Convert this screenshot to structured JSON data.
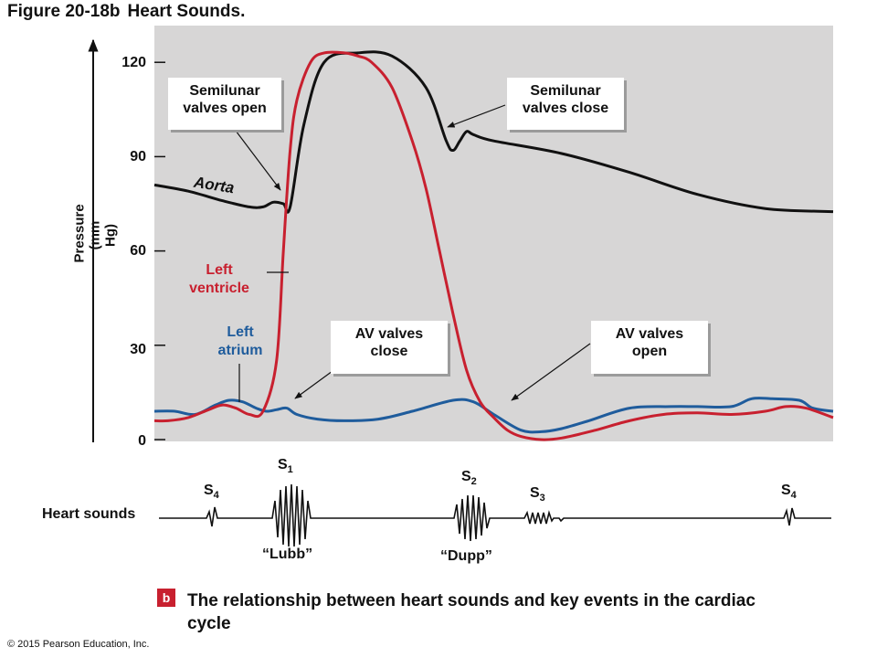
{
  "figure": {
    "number": "Figure 20-18b",
    "title": "Heart Sounds."
  },
  "chart_data": {
    "type": "line",
    "ylabel": [
      "Pressure",
      "(mm Hg)"
    ],
    "ylim": [
      0,
      130
    ],
    "yticks": [
      120,
      90,
      60,
      30,
      0
    ],
    "series": [
      {
        "name": "Aorta",
        "color": "#111111",
        "x": [
          0,
          5,
          10,
          14,
          16,
          17.5,
          19,
          20,
          22,
          25,
          30,
          35,
          40,
          43,
          44,
          45,
          46,
          47,
          50,
          60,
          70,
          80,
          90,
          100
        ],
        "y": [
          81,
          79,
          76,
          74,
          74,
          75.5,
          75,
          74,
          100,
          120,
          123,
          122,
          112,
          95,
          92,
          95,
          98,
          97,
          95,
          91,
          85,
          78,
          73.5,
          72.5
        ]
      },
      {
        "name": "Left ventricle",
        "color": "#c8202f",
        "x": [
          0,
          2,
          5,
          8,
          10,
          12,
          14,
          16,
          18,
          19,
          20,
          21,
          23,
          25,
          28,
          30,
          32,
          35,
          38,
          40,
          42,
          44,
          46,
          48,
          50,
          52,
          54,
          57,
          60,
          65,
          70,
          75,
          80,
          85,
          90,
          93,
          96,
          100
        ],
        "y": [
          6,
          6,
          7,
          9.5,
          11,
          10,
          8,
          9,
          25,
          60,
          92,
          108,
          120,
          123,
          123,
          122,
          120,
          112,
          95,
          80,
          60,
          40,
          22,
          12,
          7,
          3,
          1,
          0,
          0.5,
          3,
          6,
          8,
          8.5,
          8,
          9,
          10.5,
          10,
          7
        ]
      },
      {
        "name": "Left atrium",
        "color": "#1f5c9c",
        "x": [
          0,
          3,
          6,
          9,
          11,
          13,
          15,
          16.5,
          18,
          19.5,
          21,
          24,
          28,
          33,
          38,
          44,
          47,
          50,
          54,
          57,
          60,
          64,
          70,
          76,
          80,
          85,
          88,
          91,
          95,
          97,
          100
        ],
        "y": [
          9,
          9,
          8,
          11,
          12.5,
          12,
          10,
          9,
          9.5,
          10,
          8,
          6.5,
          6,
          6.5,
          9,
          12.5,
          12,
          8,
          3,
          2.5,
          3.5,
          6,
          10,
          10.5,
          10.5,
          10.5,
          13,
          13,
          12.5,
          10,
          9
        ]
      }
    ]
  },
  "labels": {
    "aorta": "Aorta",
    "left_ventricle": [
      "Left",
      "ventricle"
    ],
    "left_atrium": [
      "Left",
      "atrium"
    ]
  },
  "callouts": {
    "semilunar_open": [
      "Semilunar",
      "valves open"
    ],
    "semilunar_close": [
      "Semilunar",
      "valves close"
    ],
    "av_close": [
      "AV valves",
      "close"
    ],
    "av_open": [
      "AV valves",
      "open"
    ]
  },
  "heart_sounds": {
    "label": "Heart sounds",
    "s_letter": "S",
    "s4_num": "4",
    "s1_num": "1",
    "s2_num": "2",
    "s3_num": "3",
    "lubb": "“Lubb”",
    "dupp": "“Dupp”"
  },
  "caption": {
    "marker": "b",
    "text": "The relationship between heart sounds and key events in the cardiac cycle"
  },
  "copyright": "© 2015 Pearson Education, Inc."
}
